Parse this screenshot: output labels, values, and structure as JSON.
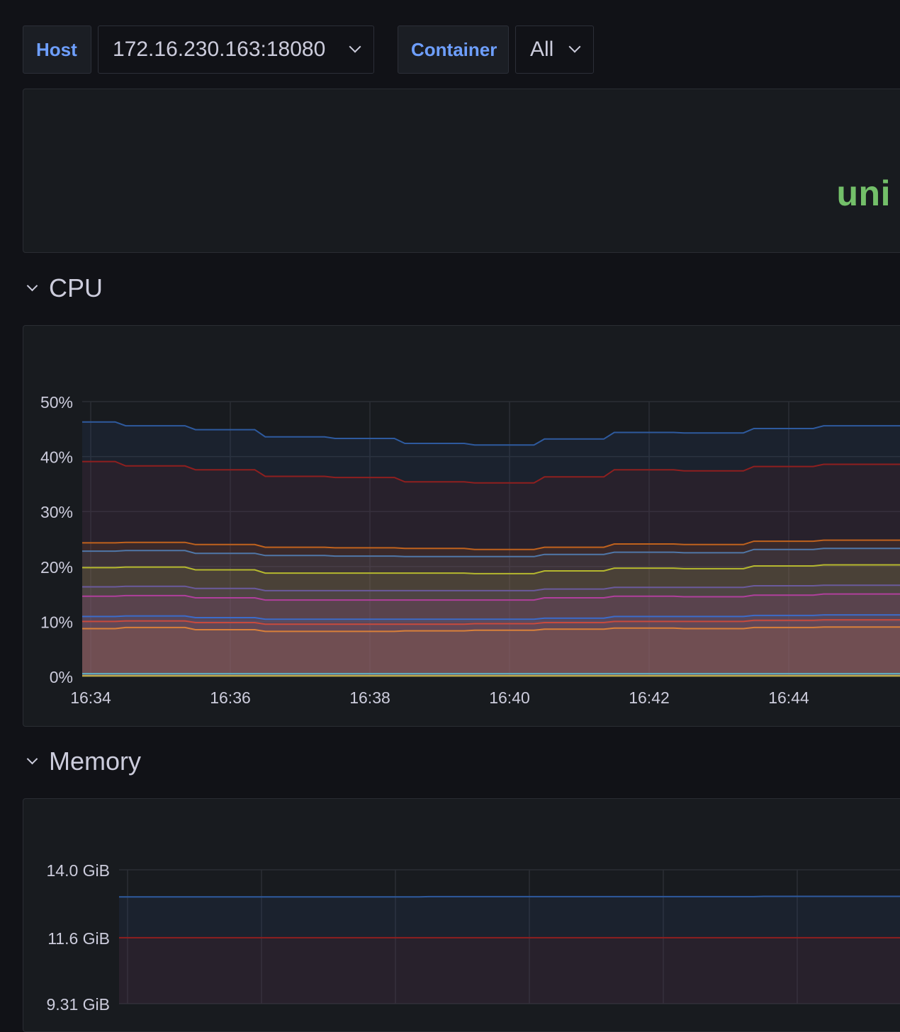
{
  "variables": {
    "host_label": "Host",
    "host_value": "172.16.230.163:18080",
    "container_label": "Container",
    "container_value": "All"
  },
  "stat_panel": {
    "value_text": "uni",
    "value_color": "#73bf69"
  },
  "rows": {
    "cpu": "CPU",
    "memory": "Memory"
  },
  "chart_data": [
    {
      "type": "area",
      "title": "",
      "xlabel": "",
      "ylabel": "",
      "x": [
        "16:34",
        "16:35",
        "16:36",
        "16:37",
        "16:38",
        "16:39",
        "16:40",
        "16:41",
        "16:42",
        "16:43",
        "16:44",
        "16:45"
      ],
      "x_tick_labels": [
        "16:34",
        "16:36",
        "16:38",
        "16:40",
        "16:42",
        "16:44"
      ],
      "y_tick_labels": [
        "0%",
        "10%",
        "20%",
        "30%",
        "40%",
        "50%"
      ],
      "ylim": [
        0,
        50
      ],
      "grid": true,
      "legend": "none",
      "series": [
        {
          "color": "#2e5a9e",
          "values": [
            46.3,
            45.6,
            44.9,
            43.6,
            43.3,
            42.4,
            42.1,
            43.2,
            44.4,
            44.3,
            45.1,
            45.6
          ]
        },
        {
          "color": "#8f1f1f",
          "values": [
            39.1,
            38.3,
            37.6,
            36.4,
            36.2,
            35.4,
            35.2,
            36.3,
            37.6,
            37.4,
            38.2,
            38.6
          ]
        },
        {
          "color": "#c0621d",
          "values": [
            24.3,
            24.4,
            24.0,
            23.5,
            23.4,
            23.3,
            23.1,
            23.5,
            24.1,
            24.0,
            24.6,
            24.8
          ]
        },
        {
          "color": "#5077a8",
          "values": [
            22.8,
            22.9,
            22.4,
            22.0,
            21.9,
            21.8,
            21.8,
            22.2,
            22.6,
            22.5,
            23.1,
            23.3
          ]
        },
        {
          "color": "#b5b82e",
          "values": [
            19.8,
            19.9,
            19.4,
            18.8,
            18.8,
            18.8,
            18.7,
            19.2,
            19.7,
            19.6,
            20.1,
            20.3
          ]
        },
        {
          "color": "#6a5a9c",
          "values": [
            16.3,
            16.4,
            16.0,
            15.6,
            15.6,
            15.6,
            15.6,
            15.9,
            16.2,
            16.2,
            16.5,
            16.6
          ]
        },
        {
          "color": "#b03f9c",
          "values": [
            14.6,
            14.7,
            14.3,
            13.9,
            13.9,
            13.9,
            13.9,
            14.3,
            14.6,
            14.5,
            14.8,
            15.0
          ]
        },
        {
          "color": "#3c6bc9",
          "values": [
            10.9,
            11.0,
            10.7,
            10.4,
            10.4,
            10.4,
            10.4,
            10.6,
            10.9,
            10.9,
            11.1,
            11.2
          ]
        },
        {
          "color": "#c84a3d",
          "values": [
            10.0,
            10.1,
            9.8,
            9.5,
            9.5,
            9.5,
            9.6,
            9.8,
            10.0,
            10.0,
            10.2,
            10.3
          ]
        },
        {
          "color": "#d9803a",
          "values": [
            8.7,
            8.9,
            8.5,
            8.2,
            8.2,
            8.3,
            8.4,
            8.6,
            8.8,
            8.7,
            8.9,
            9.0
          ]
        },
        {
          "color": "#5fb0c4",
          "values": [
            0.5,
            0.5,
            0.5,
            0.5,
            0.5,
            0.5,
            0.5,
            0.5,
            0.5,
            0.5,
            0.5,
            0.5
          ]
        },
        {
          "color": "#c9b74a",
          "values": [
            0.1,
            0.1,
            0.1,
            0.1,
            0.1,
            0.1,
            0.1,
            0.1,
            0.1,
            0.1,
            0.1,
            0.1
          ]
        }
      ]
    },
    {
      "type": "area",
      "title": "",
      "xlabel": "",
      "ylabel": "",
      "x": [
        "16:34",
        "16:35",
        "16:36",
        "16:37",
        "16:38",
        "16:39",
        "16:40",
        "16:41",
        "16:42",
        "16:43",
        "16:44",
        "16:45"
      ],
      "y_tick_labels": [
        "9.31 GiB",
        "11.6 GiB",
        "14.0 GiB"
      ],
      "ylim": [
        9.31,
        14.0
      ],
      "grid": true,
      "legend": "none",
      "series": [
        {
          "color": "#2e5a9e",
          "values": [
            13.05,
            13.05,
            13.05,
            13.05,
            13.05,
            13.06,
            13.06,
            13.06,
            13.06,
            13.06,
            13.07,
            13.07
          ]
        },
        {
          "color": "#8f1f1f",
          "values": [
            11.62,
            11.62,
            11.62,
            11.62,
            11.62,
            11.62,
            11.62,
            11.62,
            11.62,
            11.62,
            11.62,
            11.62
          ]
        }
      ]
    }
  ]
}
